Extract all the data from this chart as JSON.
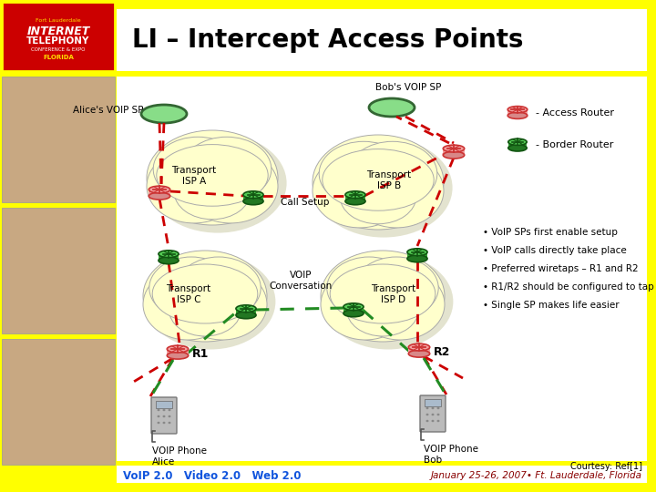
{
  "title": "LI – Intercept Access Points",
  "bg_color": "#FFFF00",
  "white": "#FFFFFF",
  "cloud_fill": "#FFFFCC",
  "cloud_shadow": "#CCCC99",
  "red_line": "#CC0000",
  "green_line": "#228B22",
  "access_fill": "#F4A0A0",
  "access_edge": "#CC3333",
  "border_fill": "#33AA33",
  "border_top": "#55CC55",
  "border_bot": "#227722",
  "border_edge": "#115511",
  "sp_fill": "#88DD88",
  "sp_edge": "#336633",
  "label_alice": "Alice's VOIP SP",
  "label_bob": "Bob's VOIP SP",
  "label_ispa": "Transport\nISP A",
  "label_ispb": "Transport\nISP B",
  "label_ispc": "Transport\nISP C",
  "label_ispd": "Transport\nISP D",
  "label_call": "Call Setup",
  "label_voip": "VOIP\nConversation",
  "label_r1": "R1",
  "label_r2": "R2",
  "label_pa": "VOIP Phone\nAlice",
  "label_pb": "VOIP Phone\nBob",
  "leg_access": "- Access Router",
  "leg_border": "- Border Router",
  "bullets": [
    "• VoIP SPs first enable setup",
    "• VoIP calls directly take place",
    "• Preferred wiretaps – R1 and R2",
    "• R1/R2 should be configured to tap",
    "• Single SP makes life easier"
  ],
  "footer_l": "VoIP 2.0   Video 2.0   Web 2.0",
  "footer_r": "January 25-26, 2007• Ft. Lauderdale, Florida",
  "courtesy": "Courtesy: Ref[1]",
  "photo_bg": "#C8A882"
}
